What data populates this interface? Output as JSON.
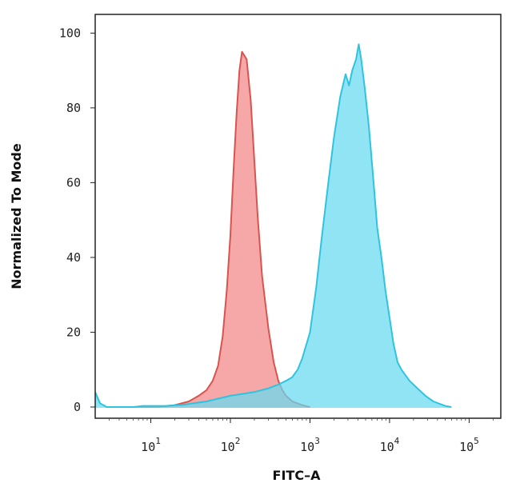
{
  "chart_data": {
    "type": "area",
    "title": "",
    "xlabel": "FITC–A",
    "ylabel": "Normalized To Mode",
    "xscale": "log",
    "xlim": [
      2,
      250000
    ],
    "ylim": [
      -3,
      105
    ],
    "x_ticks": [
      {
        "value": 10,
        "base": "10",
        "exp": "1"
      },
      {
        "value": 100,
        "base": "10",
        "exp": "2"
      },
      {
        "value": 1000,
        "base": "10",
        "exp": "3"
      },
      {
        "value": 10000,
        "base": "10",
        "exp": "4"
      },
      {
        "value": 100000,
        "base": "10",
        "exp": "5"
      }
    ],
    "y_ticks": [
      {
        "value": 0,
        "label": "0"
      },
      {
        "value": 20,
        "label": "20"
      },
      {
        "value": 40,
        "label": "40"
      },
      {
        "value": 60,
        "label": "60"
      },
      {
        "value": 80,
        "label": "80"
      },
      {
        "value": 100,
        "label": "100"
      }
    ],
    "grid": false,
    "legend": "none",
    "series": [
      {
        "fill": "#f5a3a3",
        "stroke": "#d9534f",
        "points": [
          [
            5,
            0
          ],
          [
            12,
            0
          ],
          [
            20,
            0.5
          ],
          [
            30,
            1.5
          ],
          [
            40,
            3
          ],
          [
            50,
            4.5
          ],
          [
            60,
            7
          ],
          [
            70,
            11
          ],
          [
            80,
            19
          ],
          [
            90,
            31
          ],
          [
            100,
            46
          ],
          [
            110,
            64
          ],
          [
            120,
            79
          ],
          [
            130,
            90
          ],
          [
            140,
            95
          ],
          [
            160,
            93
          ],
          [
            180,
            82
          ],
          [
            200,
            66
          ],
          [
            220,
            51
          ],
          [
            250,
            35
          ],
          [
            300,
            21
          ],
          [
            350,
            12
          ],
          [
            400,
            7
          ],
          [
            450,
            4.5
          ],
          [
            500,
            3
          ],
          [
            600,
            1.5
          ],
          [
            800,
            0.5
          ],
          [
            1000,
            0
          ]
        ]
      },
      {
        "fill": "#66d9f0",
        "stroke": "#2ec4e0",
        "points": [
          [
            2,
            4
          ],
          [
            2.3,
            1
          ],
          [
            2.8,
            0
          ],
          [
            6,
            0
          ],
          [
            8,
            0.3
          ],
          [
            15,
            0.3
          ],
          [
            25,
            0.6
          ],
          [
            50,
            1.5
          ],
          [
            100,
            3
          ],
          [
            200,
            4
          ],
          [
            300,
            5
          ],
          [
            400,
            6
          ],
          [
            500,
            7
          ],
          [
            600,
            8
          ],
          [
            700,
            10
          ],
          [
            800,
            13
          ],
          [
            1000,
            20
          ],
          [
            1200,
            32
          ],
          [
            1400,
            45
          ],
          [
            1700,
            60
          ],
          [
            2000,
            72
          ],
          [
            2400,
            83
          ],
          [
            2800,
            89
          ],
          [
            3100,
            86
          ],
          [
            3400,
            90
          ],
          [
            3800,
            93
          ],
          [
            4100,
            97
          ],
          [
            4400,
            93
          ],
          [
            4900,
            85
          ],
          [
            5500,
            75
          ],
          [
            6300,
            60
          ],
          [
            7000,
            48
          ],
          [
            7900,
            40
          ],
          [
            8900,
            31
          ],
          [
            10000,
            24
          ],
          [
            11200,
            17
          ],
          [
            12600,
            12
          ],
          [
            14100,
            10
          ],
          [
            17800,
            7
          ],
          [
            22400,
            5
          ],
          [
            28200,
            3
          ],
          [
            35500,
            1.5
          ],
          [
            50000,
            0.3
          ],
          [
            60000,
            0
          ]
        ]
      }
    ]
  }
}
